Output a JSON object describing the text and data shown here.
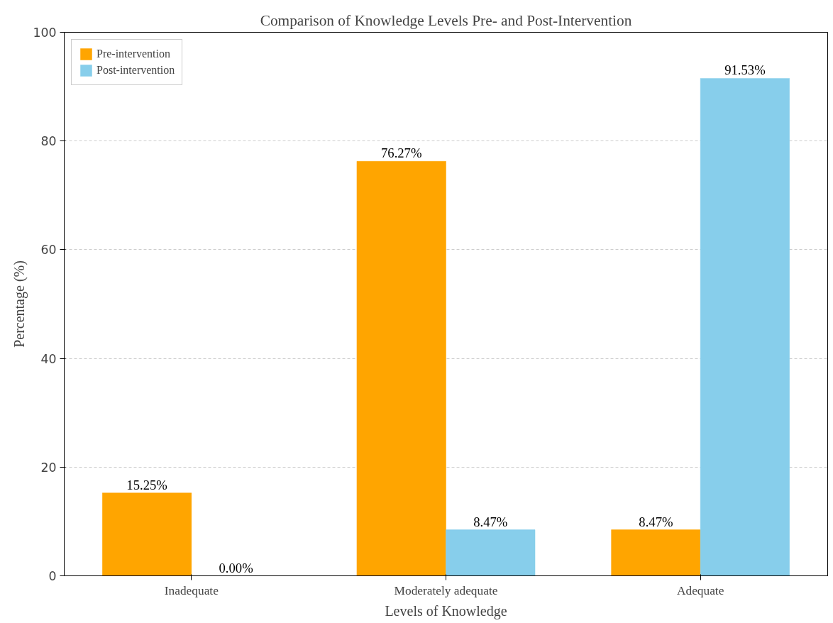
{
  "chart_data": {
    "type": "bar",
    "title": "Comparison of Knowledge Levels Pre- and Post-Intervention",
    "xlabel": "Levels of Knowledge",
    "ylabel": "Percentage (%)",
    "categories": [
      "Inadequate",
      "Moderately adequate",
      "Adequate"
    ],
    "series": [
      {
        "name": "Pre-intervention",
        "color": "#ffa500",
        "values": [
          15.25,
          76.27,
          8.47
        ],
        "value_labels": [
          "15.25%",
          "76.27%",
          "8.47%"
        ]
      },
      {
        "name": "Post-intervention",
        "color": "#87ceeb",
        "values": [
          0.0,
          8.47,
          91.53
        ],
        "value_labels": [
          "0.00%",
          "8.47%",
          "91.53%"
        ]
      }
    ],
    "ylim": [
      0,
      100
    ],
    "yticks": [
      0,
      20,
      40,
      60,
      80,
      100
    ],
    "grid": "y",
    "legend": "top left"
  }
}
